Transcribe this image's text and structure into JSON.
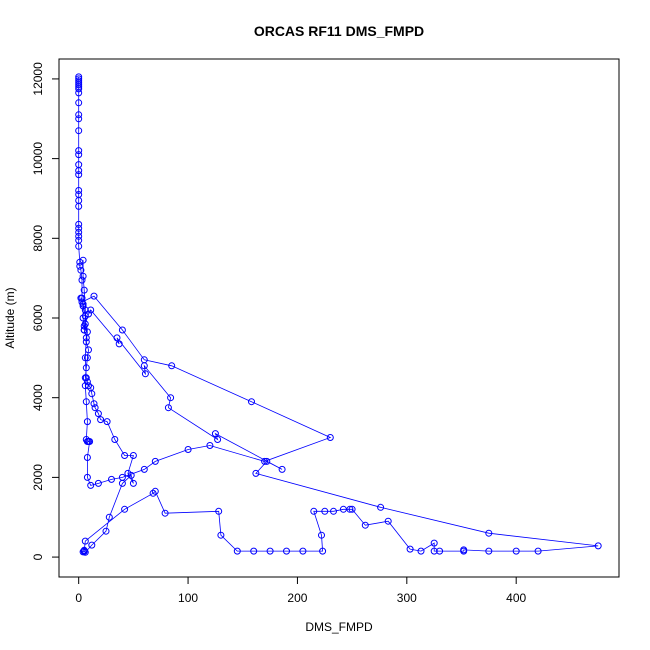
{
  "chart_data": {
    "type": "line",
    "title": "ORCAS RF11 DMS_FMPD",
    "xlabel": "DMS_FMPD",
    "ylabel": "Altitude (m)",
    "xlim": [
      -18,
      494
    ],
    "ylim": [
      -500,
      12500
    ],
    "xticks": [
      0,
      100,
      200,
      300,
      400
    ],
    "yticks": [
      0,
      2000,
      4000,
      6000,
      8000,
      10000,
      12000
    ],
    "grid": false,
    "legend": "none",
    "series_color": "#0000ff",
    "marker": "open-circle",
    "series": [
      {
        "points": [
          [
            0,
            12050
          ],
          [
            0,
            12000
          ],
          [
            0,
            11950
          ],
          [
            0,
            11900
          ],
          [
            0,
            11850
          ],
          [
            0,
            11800
          ],
          [
            0,
            11750
          ],
          [
            0,
            11650
          ],
          [
            0,
            11400
          ],
          [
            0,
            11100
          ],
          [
            0,
            11000
          ],
          [
            0,
            10700
          ],
          [
            0,
            10200
          ],
          [
            0,
            10100
          ],
          [
            0,
            9850
          ],
          [
            0,
            9700
          ],
          [
            0,
            9600
          ],
          [
            0,
            9200
          ],
          [
            0,
            9100
          ],
          [
            0,
            8950
          ],
          [
            0,
            8800
          ],
          [
            0,
            8350
          ],
          [
            0,
            8250
          ],
          [
            0,
            8150
          ],
          [
            0,
            8050
          ],
          [
            0,
            7950
          ],
          [
            0,
            7800
          ],
          [
            1,
            7400
          ],
          [
            1,
            7300
          ],
          [
            2,
            7200
          ],
          [
            3,
            6950
          ],
          [
            3,
            6500
          ],
          [
            2,
            6500
          ],
          [
            4,
            6300
          ],
          [
            4,
            6000
          ],
          [
            5,
            5700
          ],
          [
            5,
            5800
          ],
          [
            8,
            5650
          ],
          [
            7,
            5400
          ],
          [
            9,
            5200
          ],
          [
            8,
            5000
          ],
          [
            7,
            4750
          ],
          [
            6,
            4500
          ],
          [
            8,
            4400
          ],
          [
            9,
            4300
          ],
          [
            11,
            4250
          ],
          [
            12,
            4100
          ],
          [
            14,
            3850
          ],
          [
            15,
            3750
          ],
          [
            18,
            3600
          ],
          [
            20,
            3450
          ],
          [
            26,
            3400
          ],
          [
            33,
            2950
          ],
          [
            42,
            2550
          ],
          [
            50,
            2550
          ],
          [
            45,
            2100
          ],
          [
            50,
            1850
          ],
          [
            48,
            2050
          ],
          [
            40,
            1850
          ],
          [
            28,
            1000
          ],
          [
            25,
            650
          ],
          [
            12,
            300
          ],
          [
            6,
            120
          ],
          [
            5,
            150
          ],
          [
            5,
            170
          ],
          [
            5,
            140
          ],
          [
            4,
            130
          ],
          [
            5,
            150
          ],
          [
            6,
            400
          ],
          [
            42,
            1200
          ],
          [
            68,
            1600
          ],
          [
            70,
            1650
          ],
          [
            79,
            1100
          ],
          [
            128,
            1150
          ],
          [
            130,
            550
          ],
          [
            145,
            150
          ],
          [
            160,
            150
          ],
          [
            175,
            150
          ],
          [
            190,
            150
          ],
          [
            205,
            150
          ],
          [
            223,
            150
          ],
          [
            222,
            550
          ],
          [
            215,
            1150
          ],
          [
            225,
            1150
          ],
          [
            233,
            1150
          ],
          [
            242,
            1200
          ],
          [
            248,
            1200
          ],
          [
            250,
            1200
          ],
          [
            262,
            800
          ],
          [
            283,
            900
          ],
          [
            303,
            200
          ],
          [
            313,
            150
          ],
          [
            325,
            350
          ],
          [
            325,
            150
          ],
          [
            330,
            150
          ],
          [
            352,
            150
          ],
          [
            352,
            180
          ],
          [
            375,
            150
          ],
          [
            400,
            150
          ],
          [
            420,
            150
          ],
          [
            475,
            280
          ],
          [
            375,
            600
          ],
          [
            276,
            1250
          ],
          [
            162,
            2100
          ],
          [
            172,
            2400
          ],
          [
            186,
            2200
          ],
          [
            125,
            3100
          ],
          [
            127,
            2950
          ],
          [
            82,
            3750
          ],
          [
            84,
            4000
          ],
          [
            60,
            4800
          ],
          [
            61,
            4600
          ],
          [
            35,
            5500
          ],
          [
            37,
            5350
          ],
          [
            11,
            6200
          ],
          [
            9,
            6100
          ],
          [
            6,
            5850
          ],
          [
            5,
            5700
          ],
          [
            6,
            6050
          ],
          [
            4,
            6350
          ],
          [
            3,
            6400
          ],
          [
            14,
            6550
          ],
          [
            40,
            5700
          ],
          [
            60,
            4950
          ],
          [
            85,
            4800
          ],
          [
            158,
            3900
          ],
          [
            230,
            3000
          ],
          [
            170,
            2400
          ],
          [
            120,
            2800
          ],
          [
            100,
            2700
          ],
          [
            70,
            2400
          ],
          [
            60,
            2200
          ],
          [
            40,
            2000
          ],
          [
            30,
            1950
          ],
          [
            18,
            1850
          ],
          [
            11,
            1800
          ],
          [
            8,
            2000
          ],
          [
            8,
            2500
          ],
          [
            10,
            2900
          ],
          [
            8,
            2900
          ],
          [
            9,
            2900
          ],
          [
            7,
            2950
          ],
          [
            8,
            3400
          ],
          [
            7,
            3900
          ],
          [
            6,
            4300
          ],
          [
            7,
            4500
          ],
          [
            6,
            5000
          ],
          [
            7,
            5500
          ],
          [
            6,
            6200
          ],
          [
            5,
            6700
          ],
          [
            4,
            7050
          ],
          [
            4,
            7450
          ]
        ]
      }
    ]
  }
}
